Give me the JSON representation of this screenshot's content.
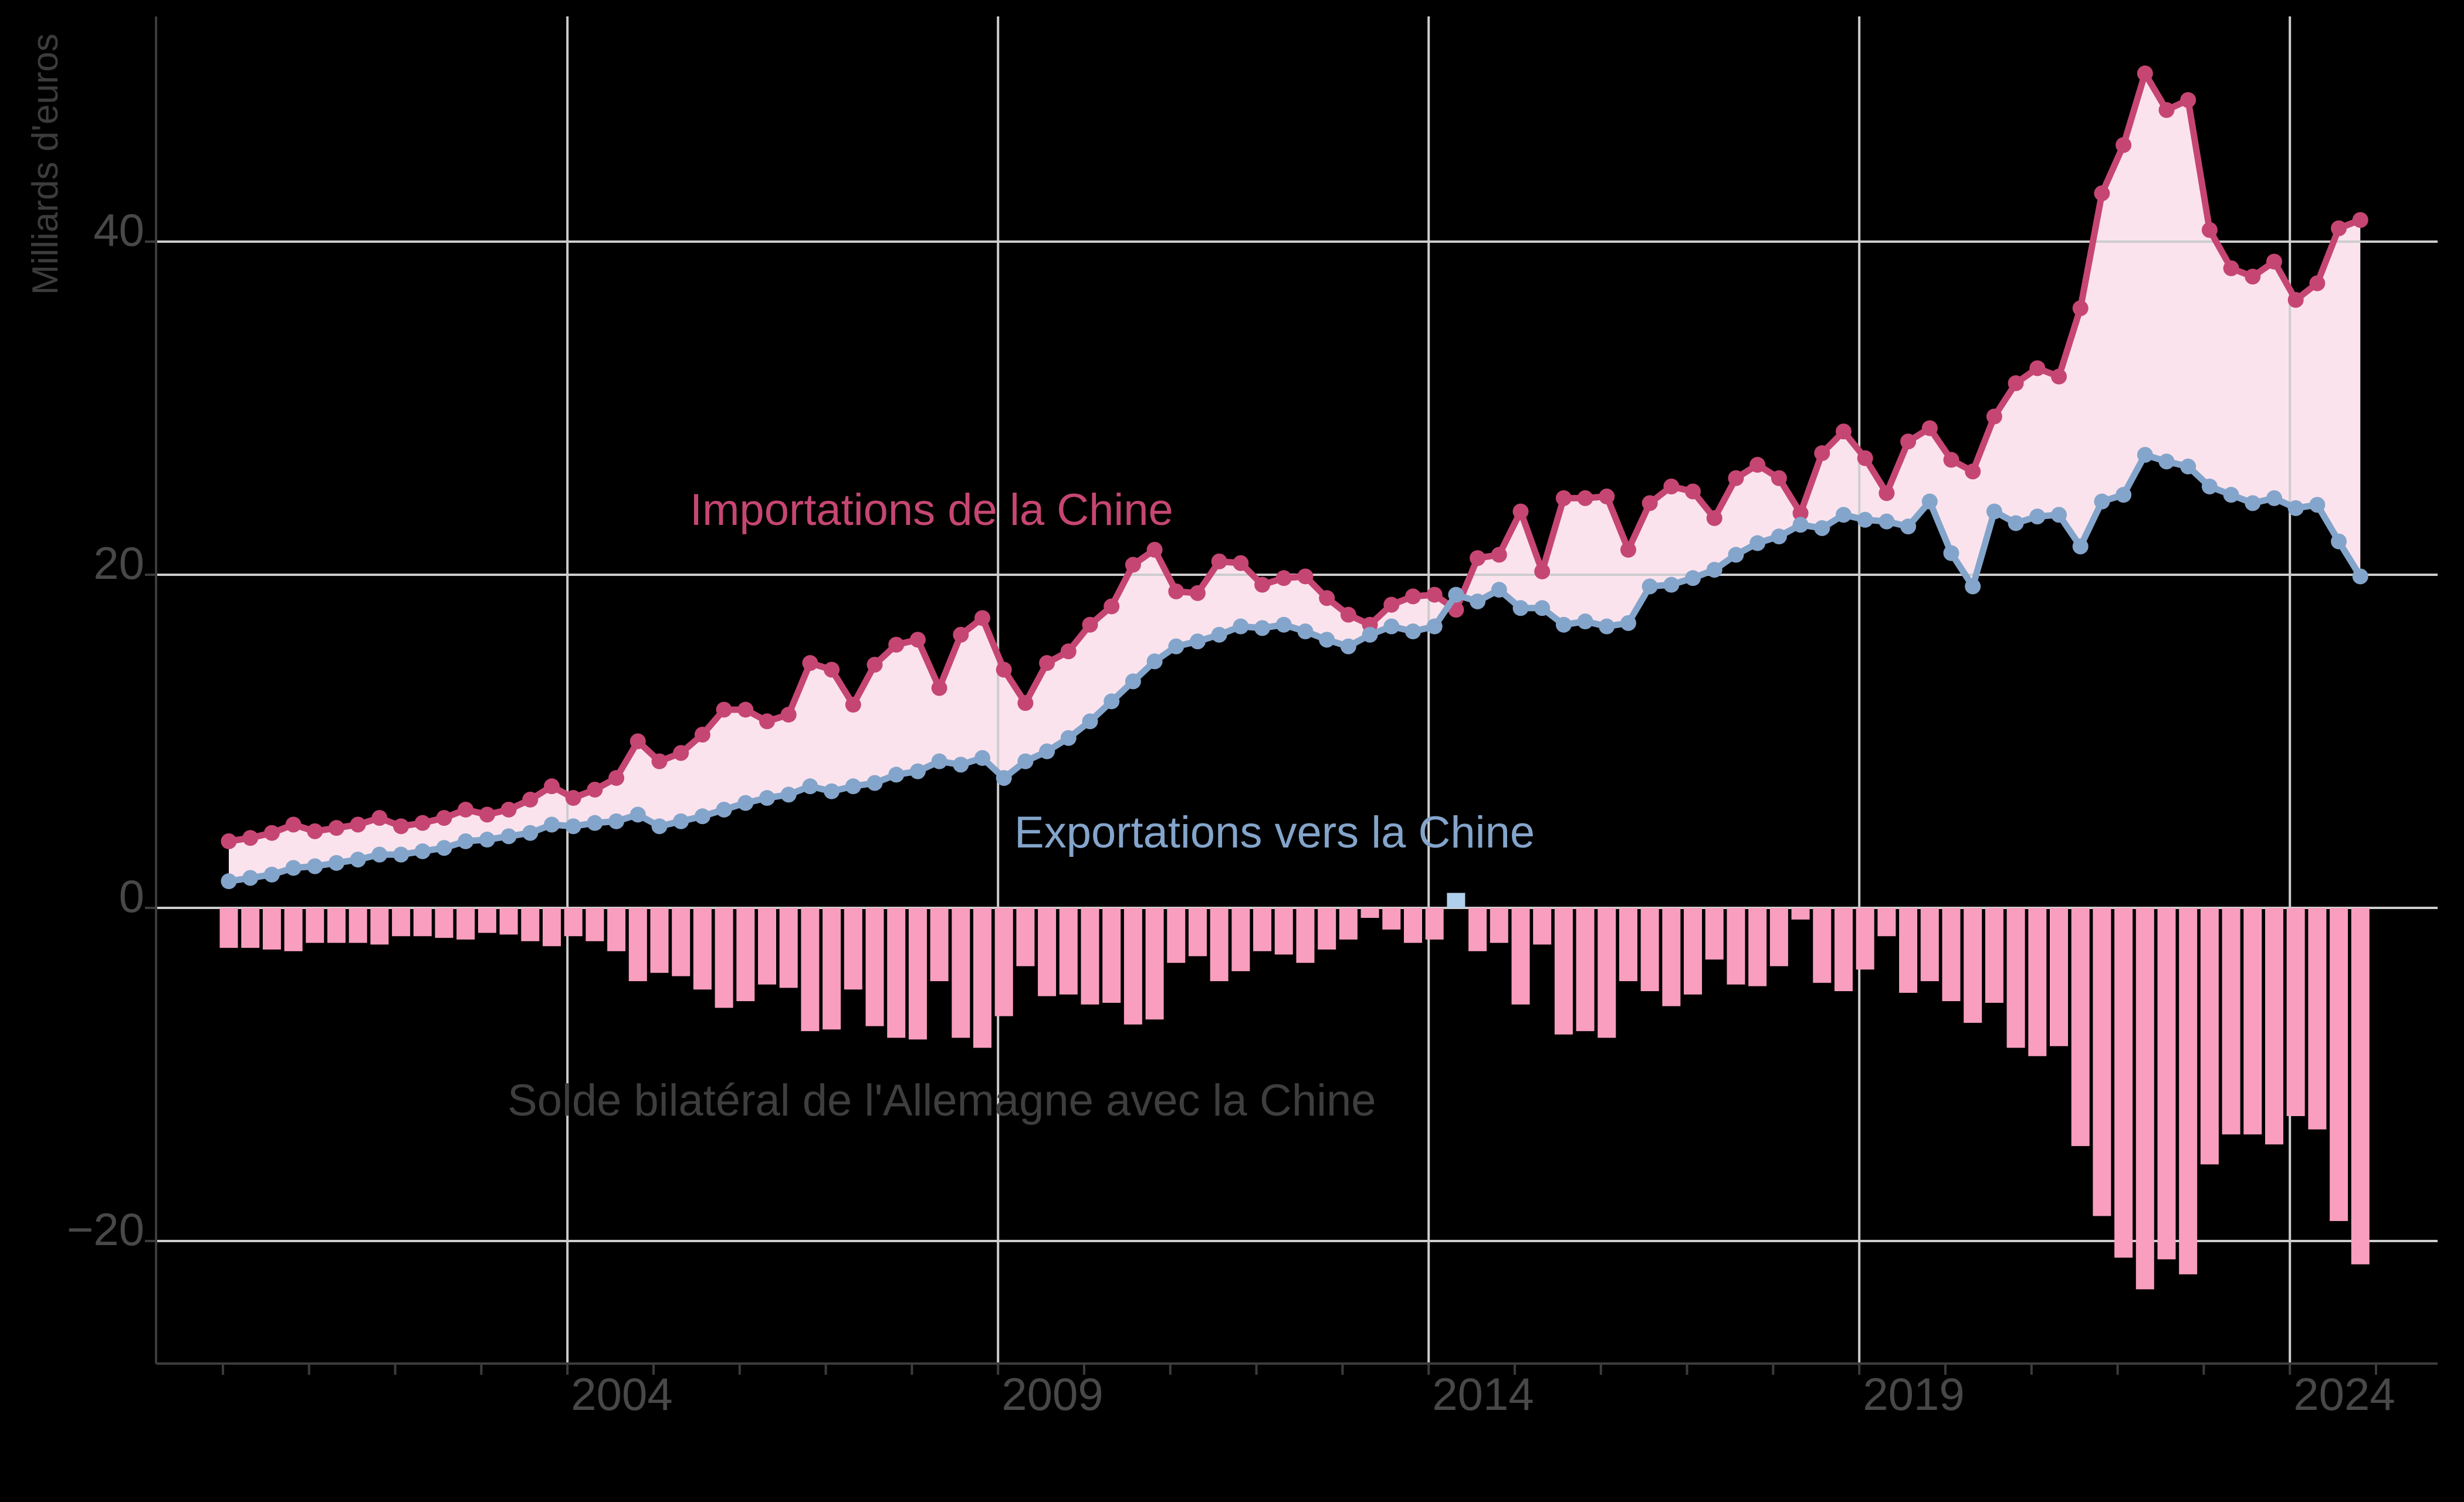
{
  "chart_data": {
    "type": "line",
    "description": "Quarterly series with dotted lines, area fill between lines, and a bar chart of the bilateral balance below zero",
    "unit": "Milliards d'euros",
    "frequency": "quarterly",
    "period_start": "2000-T1",
    "period_end": "2024-T4",
    "background_color": "#000000",
    "y_axis": {
      "label": "Milliards d'euros",
      "ticks": [
        {
          "value": 40,
          "label": "40"
        },
        {
          "value": 20,
          "label": "20"
        },
        {
          "value": 0,
          "label": "0"
        },
        {
          "value": -20,
          "label": "−20"
        }
      ],
      "ylim": [
        -27.4,
        53.5
      ],
      "gridlines": true
    },
    "x_axis": {
      "labeled_ticks": [
        {
          "year": 2004,
          "label": "2004"
        },
        {
          "year": 2009,
          "label": "2009"
        },
        {
          "year": 2014,
          "label": "2014"
        },
        {
          "year": 2019,
          "label": "2019"
        },
        {
          "year": 2024,
          "label": "2024"
        }
      ],
      "minor_tick_years": [
        2000,
        2001,
        2002,
        2003,
        2004,
        2005,
        2006,
        2007,
        2008,
        2009,
        2010,
        2011,
        2012,
        2013,
        2014,
        2015,
        2016,
        2017,
        2018,
        2019,
        2020,
        2021,
        2022,
        2023,
        2024,
        2025
      ],
      "xlim_years": [
        1999.2,
        2025.7
      ],
      "gridlines": true
    },
    "series": [
      {
        "id": "imports",
        "label": "Importations de la Chine",
        "type": "line",
        "color": "#C64673",
        "label_color": "#C64673",
        "values": [
          4.0,
          4.2,
          4.5,
          5.0,
          4.6,
          4.8,
          5.0,
          5.4,
          4.9,
          5.1,
          5.4,
          5.9,
          5.6,
          5.9,
          6.5,
          7.3,
          6.6,
          7.1,
          7.8,
          10.0,
          8.8,
          9.3,
          10.4,
          11.9,
          11.9,
          11.2,
          11.6,
          14.7,
          14.3,
          12.2,
          14.6,
          15.8,
          16.1,
          13.2,
          16.4,
          17.4,
          14.3,
          12.3,
          14.7,
          15.4,
          17.0,
          18.1,
          20.6,
          21.5,
          19.0,
          18.9,
          20.8,
          20.7,
          19.4,
          19.8,
          19.9,
          18.6,
          17.6,
          17.0,
          18.2,
          18.7,
          18.8,
          17.9,
          21.0,
          21.2,
          23.8,
          20.2,
          24.6,
          24.6,
          24.7,
          21.5,
          24.3,
          25.3,
          25.0,
          23.4,
          25.8,
          26.6,
          25.8,
          23.7,
          27.3,
          28.6,
          27.0,
          24.9,
          28.0,
          28.8,
          26.9,
          26.2,
          29.5,
          31.5,
          32.4,
          31.9,
          36.0,
          42.9,
          45.8,
          50.1,
          47.9,
          48.5,
          40.7,
          38.4,
          37.9,
          38.8,
          36.5,
          37.5,
          40.8,
          41.3
        ]
      },
      {
        "id": "exports",
        "label": "Exportations vers la Chine",
        "type": "line",
        "color": "#84A5CB",
        "label_color": "#84A5CB",
        "values": [
          1.6,
          1.8,
          2.0,
          2.4,
          2.5,
          2.7,
          2.9,
          3.2,
          3.2,
          3.4,
          3.6,
          4.0,
          4.1,
          4.3,
          4.5,
          5.0,
          4.9,
          5.1,
          5.2,
          5.6,
          4.9,
          5.2,
          5.5,
          5.9,
          6.3,
          6.6,
          6.8,
          7.3,
          7.0,
          7.3,
          7.5,
          8.0,
          8.2,
          8.8,
          8.6,
          9.0,
          7.8,
          8.8,
          9.4,
          10.2,
          11.2,
          12.4,
          13.6,
          14.8,
          15.7,
          16.0,
          16.4,
          16.9,
          16.8,
          17.0,
          16.6,
          16.1,
          15.7,
          16.4,
          16.9,
          16.6,
          16.9,
          18.8,
          18.4,
          19.1,
          18.0,
          18.0,
          17.0,
          17.2,
          16.9,
          17.1,
          19.3,
          19.4,
          19.8,
          20.3,
          21.2,
          21.9,
          22.3,
          23.0,
          22.8,
          23.6,
          23.3,
          23.2,
          22.9,
          24.4,
          21.3,
          19.3,
          23.8,
          23.1,
          23.5,
          23.6,
          21.7,
          24.4,
          24.8,
          27.2,
          26.8,
          26.5,
          25.3,
          24.8,
          24.3,
          24.6,
          24.0,
          24.2,
          22.0,
          19.9
        ]
      },
      {
        "id": "solde",
        "label": "Solde bilatéral de l'Allemagne avec la Chine",
        "type": "bar",
        "color": "#F99EBE",
        "color_positive": "#AFCFEC",
        "label_color": "#3E3E3E",
        "values": [
          -2.4,
          -2.4,
          -2.5,
          -2.6,
          -2.1,
          -2.1,
          -2.1,
          -2.2,
          -1.7,
          -1.7,
          -1.8,
          -1.9,
          -1.5,
          -1.6,
          -2.0,
          -2.3,
          -1.7,
          -2.0,
          -2.6,
          -4.4,
          -3.9,
          -4.1,
          -4.9,
          -6.0,
          -5.6,
          -4.6,
          -4.8,
          -7.4,
          -7.3,
          -4.9,
          -7.1,
          -7.8,
          -7.9,
          -4.4,
          -7.8,
          -8.4,
          -6.5,
          -3.5,
          -5.3,
          -5.2,
          -5.8,
          -5.7,
          -7.0,
          -6.7,
          -3.3,
          -2.9,
          -4.4,
          -3.8,
          -2.6,
          -2.8,
          -3.3,
          -2.5,
          -1.9,
          -0.6,
          -1.3,
          -2.1,
          -1.9,
          0.9,
          -2.6,
          -2.1,
          -5.8,
          -2.2,
          -7.6,
          -7.4,
          -7.8,
          -4.4,
          -5.0,
          -5.9,
          -5.2,
          -3.1,
          -4.6,
          -4.7,
          -3.5,
          -0.7,
          -4.5,
          -5.0,
          -3.7,
          -1.7,
          -5.1,
          -4.4,
          -5.6,
          -6.9,
          -5.7,
          -8.4,
          -8.9,
          -8.3,
          -14.3,
          -18.5,
          -21.0,
          -22.9,
          -21.1,
          -22.0,
          -15.4,
          -13.6,
          -13.6,
          -14.2,
          -12.5,
          -13.3,
          -18.8,
          -21.4
        ]
      }
    ],
    "area_fill": {
      "between": [
        "imports",
        "exports"
      ],
      "color": "#FBE3ED"
    },
    "legend": {
      "position": "inline text annotations on chart"
    }
  },
  "colors": {
    "background": "#000000",
    "gridline": "#CDCDCD",
    "spine": "#3C3C3C",
    "tick_mark": "#3C3C3C",
    "tick_text": "#484848",
    "axis_title_text": "#3C3C3C"
  }
}
